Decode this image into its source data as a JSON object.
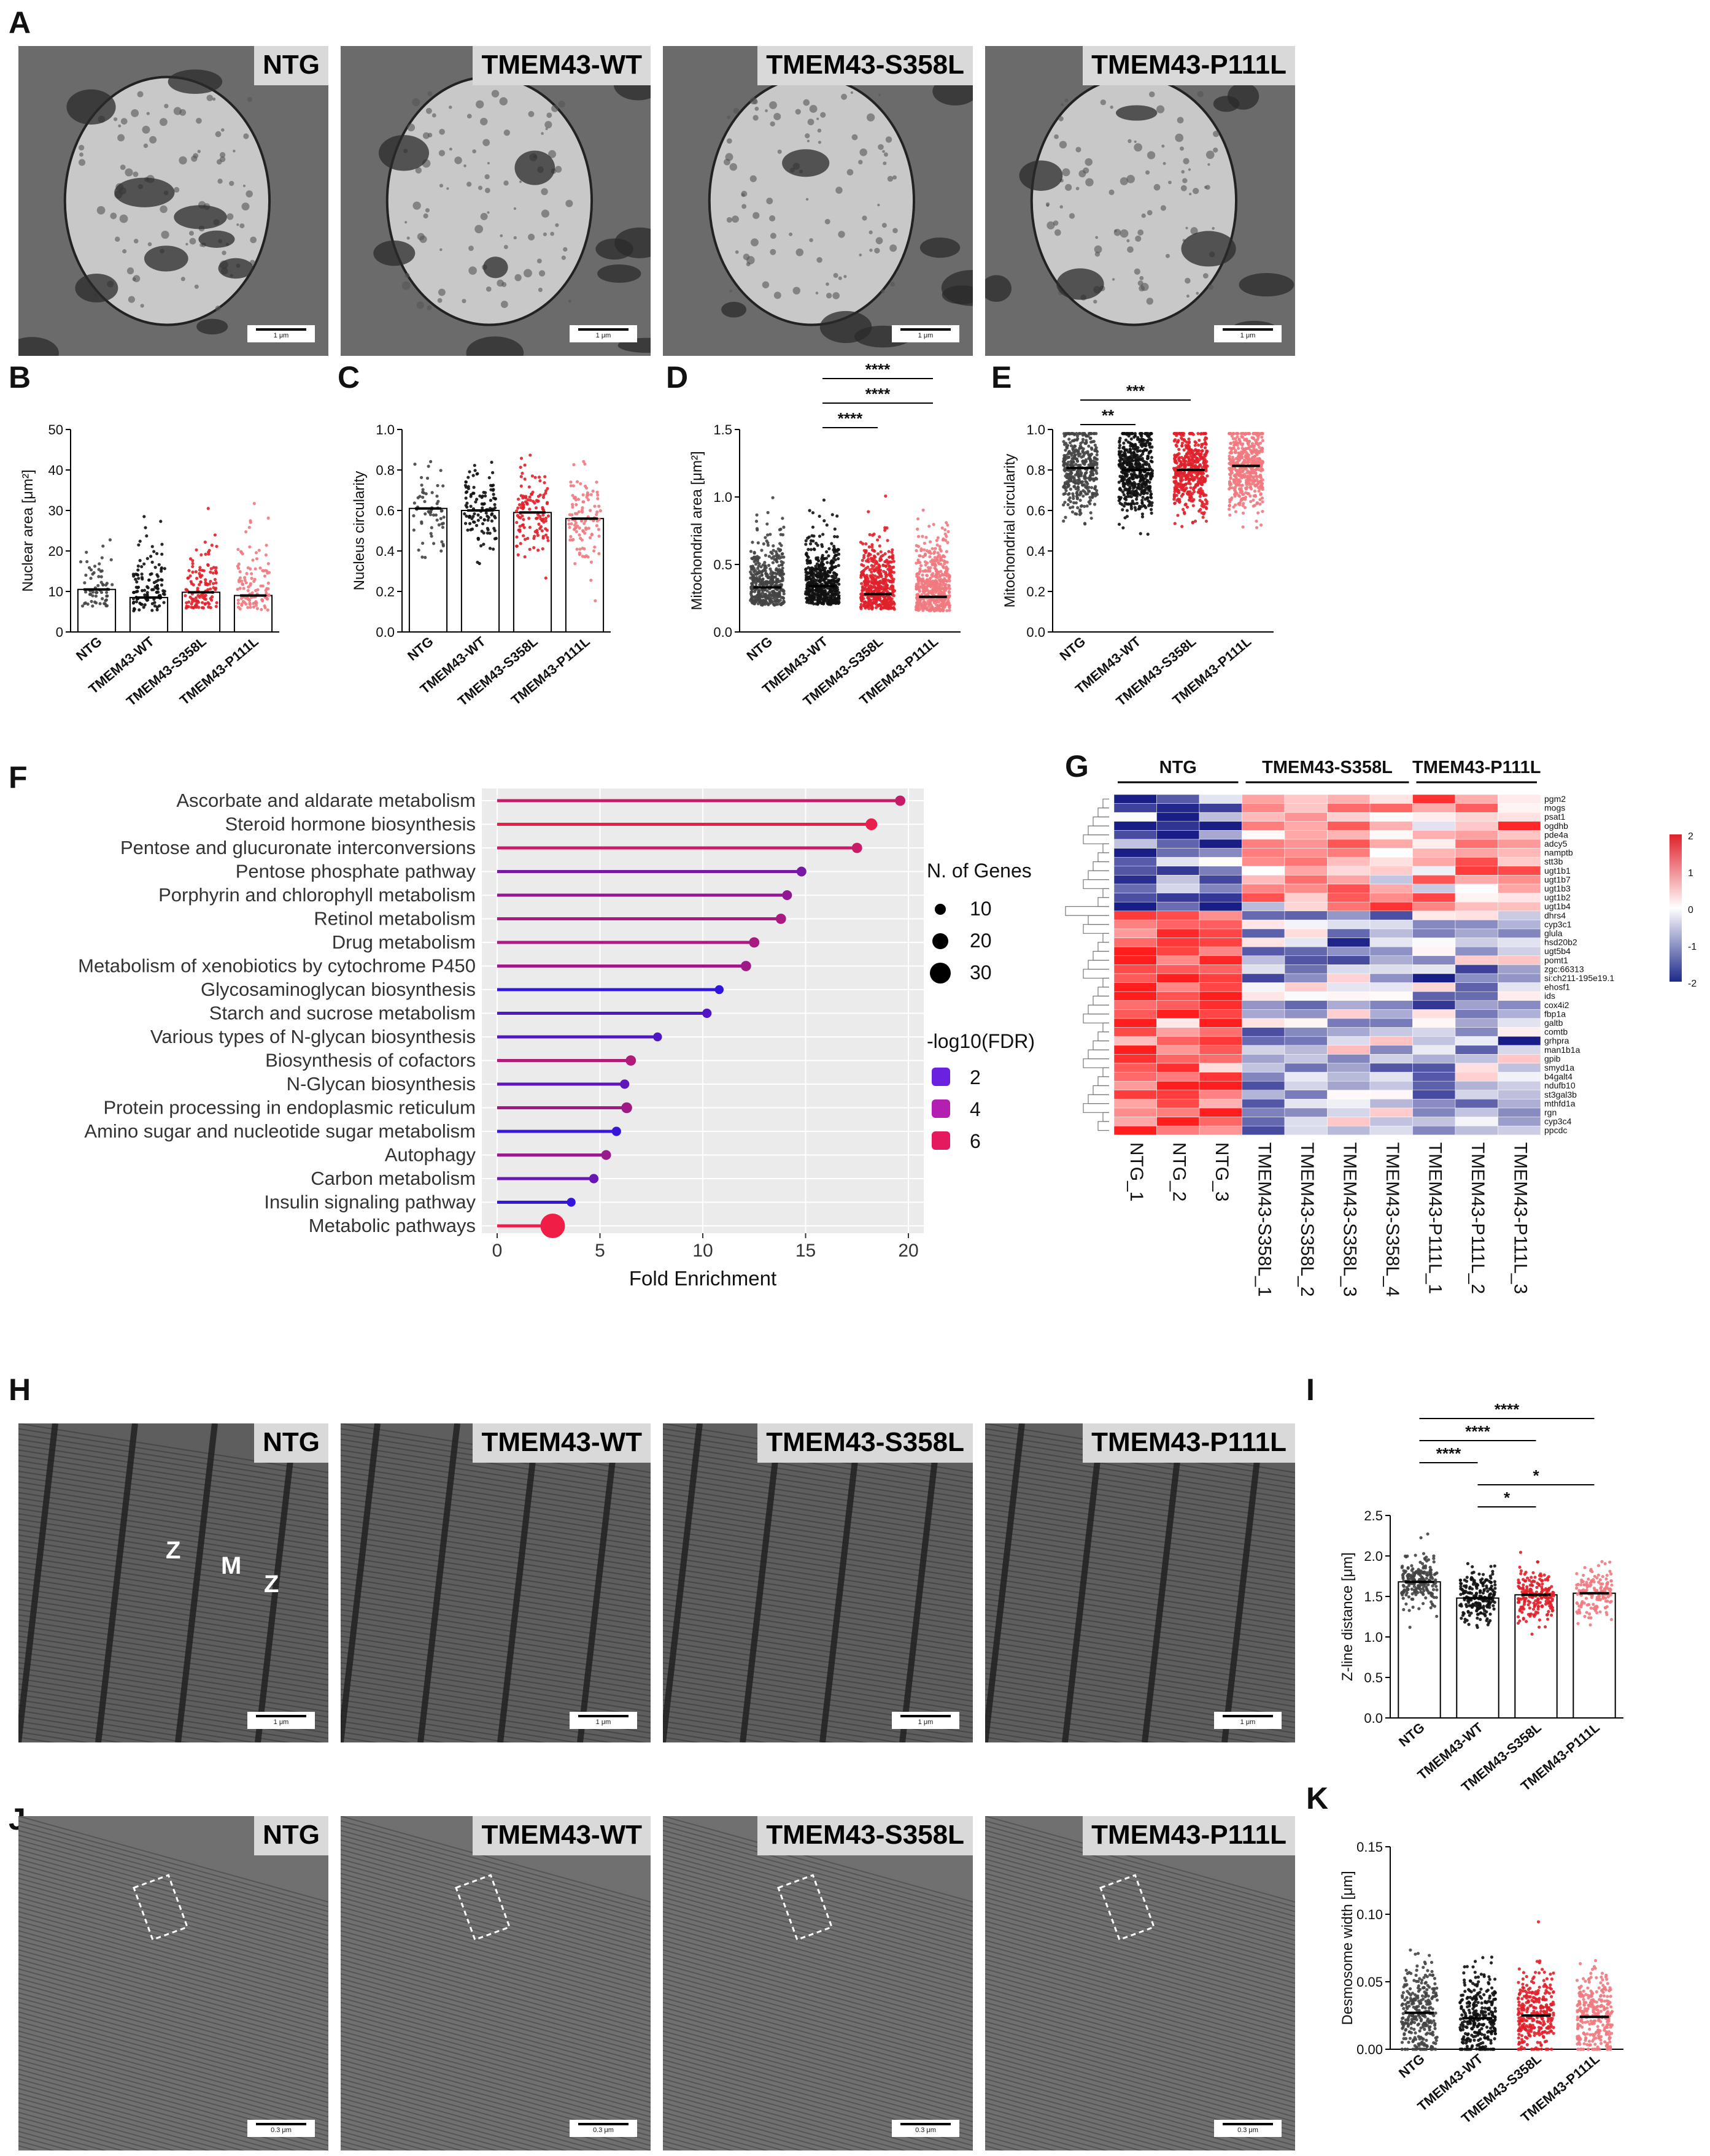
{
  "panels": {
    "A": "A",
    "B": "B",
    "C": "C",
    "D": "D",
    "E": "E",
    "F": "F",
    "G": "G",
    "H": "H",
    "I": "I",
    "J": "J",
    "K": "K"
  },
  "groups4": [
    "NTG",
    "TMEM43-WT",
    "TMEM43-S358L",
    "TMEM43-P111L"
  ],
  "em_rows": {
    "A": {
      "labels": [
        "NTG",
        "TMEM43-WT",
        "TMEM43-S358L",
        "TMEM43-P111L"
      ],
      "scale": [
        "1 μm",
        "1 μm",
        "1 μm",
        "1 μm"
      ]
    },
    "H": {
      "labels": [
        "NTG",
        "TMEM43-WT",
        "TMEM43-S358L",
        "TMEM43-P111L"
      ],
      "scale": [
        "1 μm",
        "1 μm",
        "1 μm",
        "1 μm"
      ],
      "annot": {
        "z1": "Z",
        "m": "M",
        "z2": "Z"
      }
    },
    "J": {
      "labels": [
        "NTG",
        "TMEM43-WT",
        "TMEM43-S358L",
        "TMEM43-P111L"
      ],
      "scale": [
        "0.3 μm",
        "0.3 μm",
        "0.3 μm",
        "0.3 μm"
      ]
    }
  },
  "dotplots": {
    "B": {
      "ylabel": "Nuclear area [μm²]",
      "ylim": [
        0,
        50
      ],
      "ticks": [
        "0",
        "10",
        "20",
        "30",
        "40",
        "50"
      ],
      "means": [
        10.5,
        8.5,
        9.8,
        9.0
      ],
      "n": [
        60,
        110,
        120,
        110
      ],
      "bars": true,
      "sig": []
    },
    "C": {
      "ylabel": "Nucleus circularity",
      "ylim": [
        0,
        1.0
      ],
      "ticks": [
        "0.0",
        "0.2",
        "0.4",
        "0.6",
        "0.8",
        "1.0"
      ],
      "means": [
        0.61,
        0.6,
        0.59,
        0.56
      ],
      "n": [
        60,
        110,
        120,
        110
      ],
      "bars": true,
      "sig": []
    },
    "D": {
      "ylabel": "Mitochondrial area [μm²]",
      "ylim": [
        0,
        1.5
      ],
      "ticks": [
        "0.0",
        "0.5",
        "1.0",
        "1.5"
      ],
      "means": [
        0.33,
        0.34,
        0.28,
        0.26
      ],
      "n": [
        400,
        500,
        450,
        500
      ],
      "bars": false,
      "sig": [
        {
          "from": 1,
          "to": 3,
          "label": "****"
        },
        {
          "from": 1,
          "to": 3,
          "label": "****"
        },
        {
          "from": 1,
          "to": 2,
          "label": "****"
        }
      ]
    },
    "E": {
      "ylabel": "Mitochondrial circularity",
      "ylim": [
        0,
        1.0
      ],
      "ticks": [
        "0.0",
        "0.2",
        "0.4",
        "0.6",
        "0.8",
        "1.0"
      ],
      "means": [
        0.81,
        0.8,
        0.8,
        0.82
      ],
      "n": [
        400,
        500,
        450,
        500
      ],
      "bars": false,
      "sig": [
        {
          "from": 0,
          "to": 2,
          "label": "***"
        },
        {
          "from": 0,
          "to": 1,
          "label": "**"
        }
      ]
    },
    "I": {
      "ylabel": "Z-line distance [μm]",
      "ylim": [
        0,
        2.5
      ],
      "ticks": [
        "0.0",
        "0.5",
        "1.0",
        "1.5",
        "2.0",
        "2.5"
      ],
      "means": [
        1.68,
        1.48,
        1.52,
        1.54
      ],
      "n": [
        200,
        200,
        200,
        150
      ],
      "bars": true,
      "sig": [
        {
          "from": 0,
          "to": 3,
          "label": "****"
        },
        {
          "from": 0,
          "to": 2,
          "label": "****"
        },
        {
          "from": 0,
          "to": 1,
          "label": "****"
        },
        {
          "from": 1,
          "to": 3,
          "label": "*"
        },
        {
          "from": 1,
          "to": 2,
          "label": "*"
        }
      ]
    },
    "K": {
      "ylabel": "Desmosome width [μm]",
      "ylim": [
        0,
        0.15
      ],
      "ticks": [
        "0.00",
        "0.05",
        "0.10",
        "0.15"
      ],
      "means": [
        0.027,
        0.023,
        0.025,
        0.024
      ],
      "n": [
        300,
        300,
        300,
        300
      ],
      "bars": false,
      "sig": []
    }
  },
  "chart_data": [
    {
      "type": "lollipop",
      "panel": "F",
      "xlabel": "Fold Enrichment",
      "xlim": [
        0,
        20
      ],
      "xticks": [
        "0",
        "5",
        "10",
        "15",
        "20"
      ],
      "categories": [
        "Ascorbate and aldarate metabolism",
        "Steroid hormone biosynthesis",
        "Pentose and glucuronate interconversions",
        "Pentose phosphate pathway",
        "Porphyrin and chlorophyll metabolism",
        "Retinol metabolism",
        "Drug metabolism",
        "Metabolism of xenobiotics by cytochrome P450",
        "Glycosaminoglycan biosynthesis",
        "Starch and sucrose metabolism",
        "Various types of N-glycan biosynthesis",
        "Biosynthesis of cofactors",
        "N-Glycan biosynthesis",
        "Protein processing in endoplasmic reticulum",
        "Amino sugar and nucleotide sugar metabolism",
        "Autophagy",
        "Carbon metabolism",
        "Insulin signaling pathway",
        "Metabolic pathways"
      ],
      "fold_enrichment": [
        19.6,
        18.2,
        17.5,
        14.8,
        14.1,
        13.8,
        12.5,
        12.1,
        10.8,
        10.2,
        7.8,
        6.5,
        6.2,
        6.3,
        5.8,
        5.3,
        4.7,
        3.6,
        2.7
      ],
      "n_genes": [
        6,
        9,
        6,
        5,
        5,
        6,
        6,
        6,
        3,
        4,
        3,
        6,
        4,
        7,
        4,
        5,
        4,
        3,
        35
      ],
      "neg_log10_fdr": [
        4.9,
        5.8,
        5.0,
        3.0,
        3.6,
        4.2,
        4.2,
        4.0,
        1.2,
        2.0,
        2.0,
        4.4,
        2.4,
        4.0,
        1.4,
        3.8,
        2.6,
        1.3,
        6.0
      ],
      "legend_size_title": "N. of Genes",
      "legend_size": [
        "10",
        "20",
        "30"
      ],
      "legend_color_title": "-log10(FDR)",
      "legend_color": [
        "2",
        "4",
        "6"
      ]
    },
    {
      "type": "heatmap",
      "panel": "G",
      "group_headers": [
        "NTG",
        "TMEM43-S358L",
        "TMEM43-P111L"
      ],
      "columns": [
        "NTG_1",
        "NTG_2",
        "NTG_3",
        "TMEM43-S358L_1",
        "TMEM43-S358L_2",
        "TMEM43-S358L_3",
        "TMEM43-S358L_4",
        "TMEM43-P111L_1",
        "TMEM43-P111L_2",
        "TMEM43-P111L_3"
      ],
      "rows": [
        "pgm2",
        "mogs",
        "psat1",
        "ogdhb",
        "pde4a",
        "adcy5",
        "namptb",
        "stt3b",
        "ugt1b1",
        "ugt1b7",
        "ugt1b3",
        "ugt1b2",
        "ugt1b4",
        "dhrs4",
        "cyp3c1",
        "glula",
        "hsd20b2",
        "ugt5b4",
        "pomt1",
        "zgc:66313",
        "si:ch211-195e19.1",
        "ehosf1",
        "ids",
        "cox4i2",
        "fbp1a",
        "galtb",
        "comtb",
        "grhpra",
        "man1b1a",
        "gpib",
        "smyd1a",
        "b4galt4",
        "ndufb10",
        "st3gal3b",
        "mthfd1a",
        "rgn",
        "cyp3c4",
        "ppcdc"
      ],
      "scale_ticks": [
        "2",
        "1",
        "0",
        "-1",
        "-2"
      ]
    }
  ]
}
